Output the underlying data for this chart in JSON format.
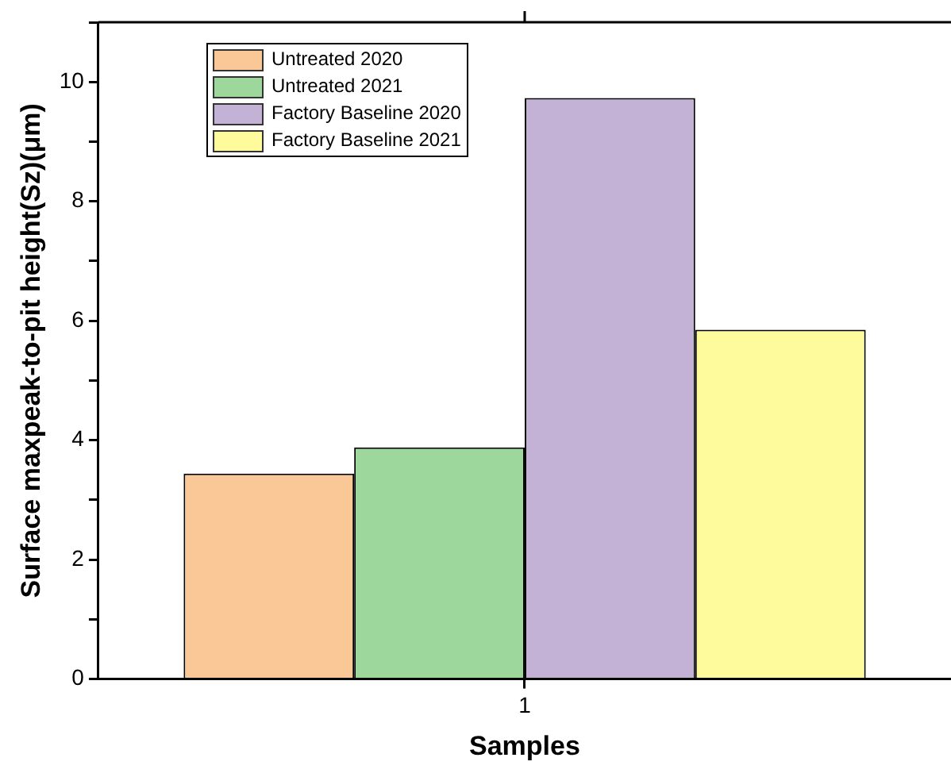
{
  "chart_data": {
    "type": "bar",
    "xlabel": "Samples",
    "ylabel": "Surface maxpeak-to-pit height(Sz)(μm)",
    "categories": [
      "1"
    ],
    "series": [
      {
        "name": "Untreated 2020",
        "color": "#f9c896",
        "values": [
          3.44
        ]
      },
      {
        "name": "Untreated 2021",
        "color": "#9dd79b",
        "values": [
          3.88
        ]
      },
      {
        "name": "Factory Baseline 2020",
        "color": "#c3b1d6",
        "values": [
          9.73
        ]
      },
      {
        "name": "Factory Baseline 2021",
        "color": "#fdfb9c",
        "values": [
          5.85
        ]
      }
    ],
    "ylim": [
      0,
      11
    ],
    "yticks": [
      0,
      {
        "value": 1,
        "label": null
      },
      2,
      {
        "value": 3,
        "label": null
      },
      4,
      {
        "value": 5,
        "label": null
      },
      6,
      {
        "value": 7,
        "label": null
      },
      8,
      {
        "value": 9,
        "label": null
      },
      10,
      {
        "value": 11,
        "label": null
      }
    ],
    "grid": false,
    "legend": "top left"
  }
}
